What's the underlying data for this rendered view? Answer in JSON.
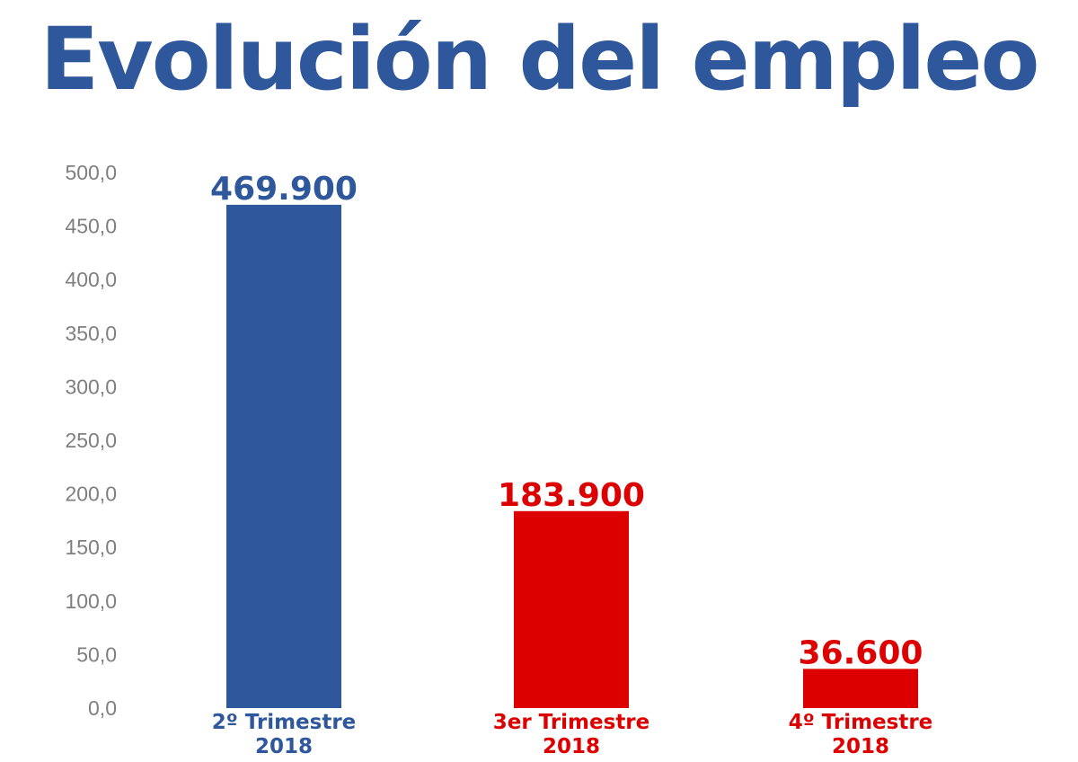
{
  "title": "Evolución del empleo",
  "colors": {
    "title": "#2f579c",
    "series": [
      "#2f579c",
      "#dc0000",
      "#dc0000"
    ],
    "axis_text": "#7f7f7f"
  },
  "chart_data": {
    "type": "bar",
    "title": "Evolución del empleo",
    "xlabel": "",
    "ylabel": "",
    "ylim": [
      0,
      500
    ],
    "yticks": [
      "0,0",
      "50,0",
      "100,0",
      "150,0",
      "200,0",
      "250,0",
      "300,0",
      "350,0",
      "400,0",
      "450,0",
      "500,0"
    ],
    "grid": false,
    "categories": [
      [
        "2º Trimestre",
        "2018"
      ],
      [
        "3er Trimestre",
        "2018"
      ],
      [
        "4º Trimestre",
        "2018"
      ]
    ],
    "values": [
      469.9,
      183.9,
      36.6
    ],
    "data_labels": [
      "469.900",
      "183.900",
      "36.600"
    ]
  }
}
